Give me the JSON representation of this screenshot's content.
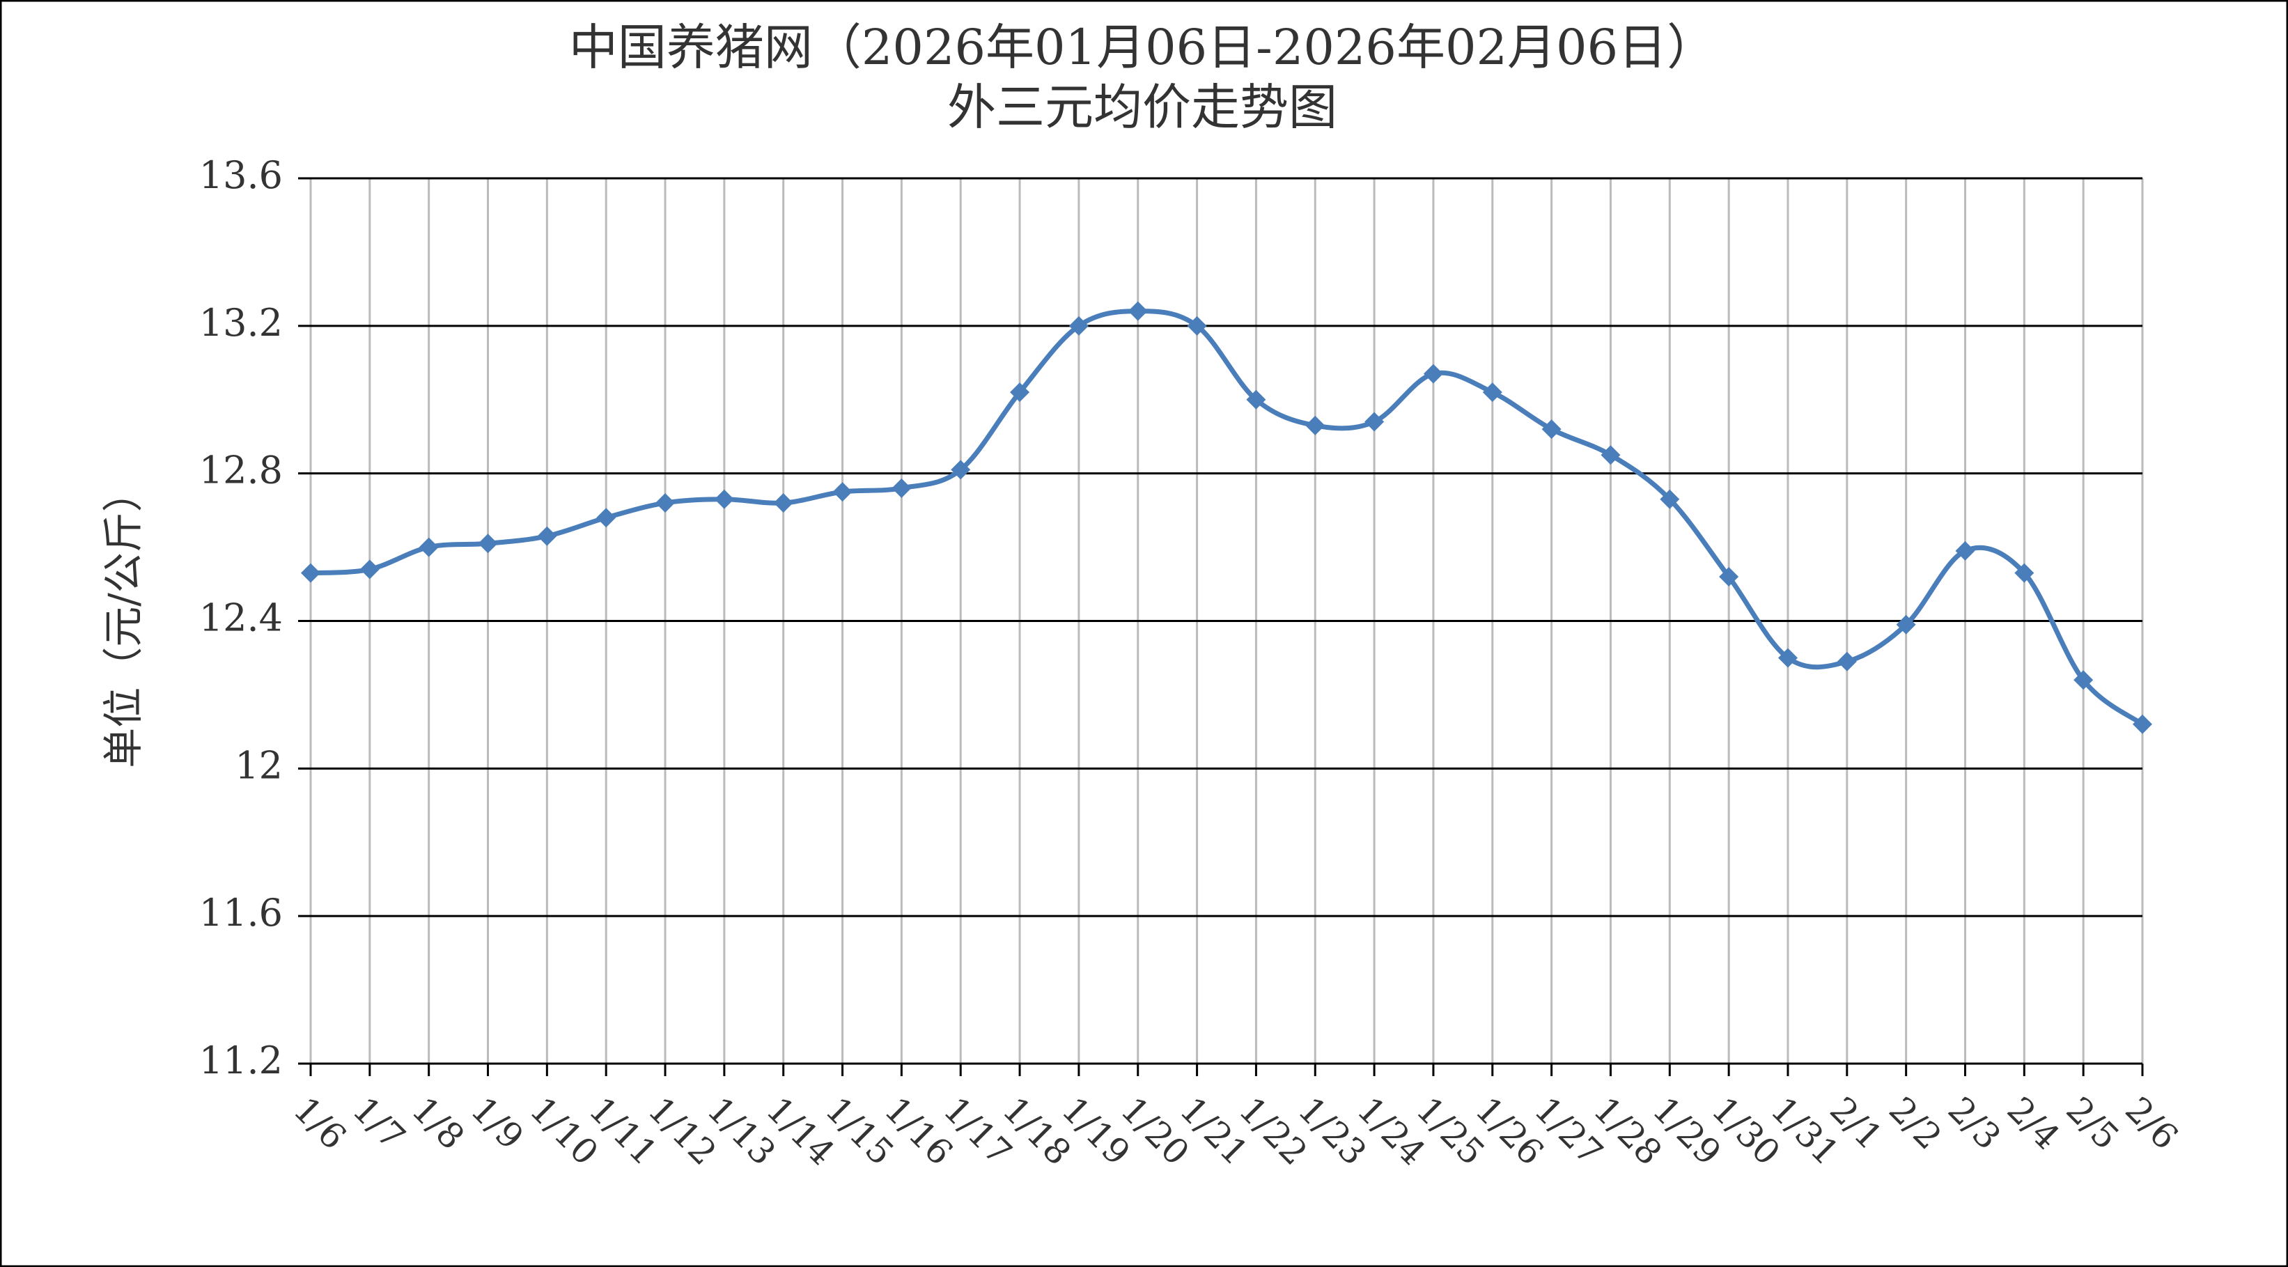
{
  "chart_data": {
    "type": "line",
    "title": "中国养猪网（2026年01月06日-2026年02月06日）",
    "subtitle": "外三元均价走势图",
    "y_label": "单位（元/公斤）",
    "categories": [
      "1/6",
      "1/7",
      "1/8",
      "1/9",
      "1/10",
      "1/11",
      "1/12",
      "1/13",
      "1/14",
      "1/15",
      "1/16",
      "1/17",
      "1/18",
      "1/19",
      "1/20",
      "1/21",
      "1/22",
      "1/23",
      "1/24",
      "1/25",
      "1/26",
      "1/27",
      "1/28",
      "1/29",
      "1/30",
      "1/31",
      "2/1",
      "2/2",
      "2/3",
      "2/4",
      "2/5",
      "2/6"
    ],
    "values": [
      12.53,
      12.54,
      12.6,
      12.61,
      12.63,
      12.68,
      12.72,
      12.73,
      12.72,
      12.75,
      12.76,
      12.81,
      13.02,
      13.2,
      13.24,
      13.2,
      13.0,
      12.93,
      12.94,
      13.07,
      13.02,
      12.92,
      12.85,
      12.73,
      12.52,
      12.3,
      12.29,
      12.39,
      12.59,
      12.53,
      12.24,
      12.12
    ],
    "color": "#4a7ebb",
    "ylim": [
      11.2,
      13.6
    ],
    "yticks": [
      11.2,
      11.6,
      12,
      12.4,
      12.8,
      13.2,
      13.6
    ],
    "grid": true,
    "smooth": true
  }
}
